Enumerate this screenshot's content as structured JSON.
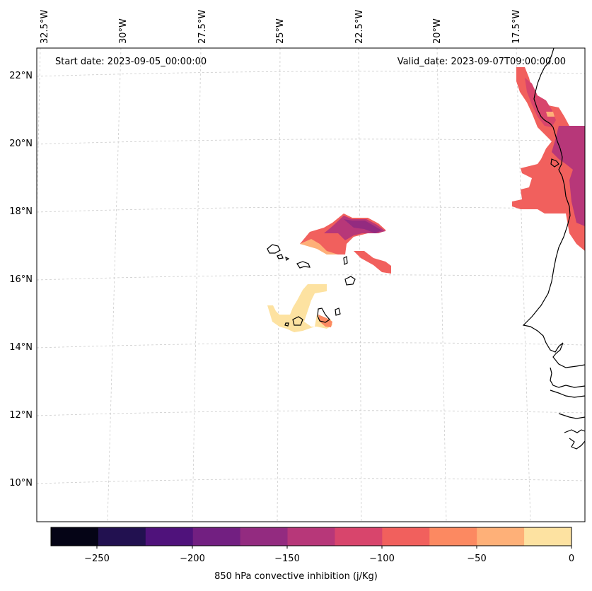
{
  "annotations": {
    "start_date": "Start date: 2023-09-05_00:00:00",
    "valid_date": "Valid_date: 2023-09-07T09:00:00.00"
  },
  "longitude_labels": [
    "32.5°W",
    "30°W",
    "27.5°W",
    "25°W",
    "22.5°W",
    "20°W",
    "17.5°W"
  ],
  "latitude_labels": [
    "22°N",
    "20°N",
    "18°N",
    "16°N",
    "14°N",
    "12°N",
    "10°N"
  ],
  "colorbar": {
    "label": "850 hPa convective inhibition (j/Kg)",
    "ticks": [
      "−250",
      "−200",
      "−150",
      "−100",
      "−50",
      "0"
    ],
    "colors": [
      "#050416",
      "#221150",
      "#4f127b",
      "#721f81",
      "#932b80",
      "#b73779",
      "#d8456c",
      "#f1605d",
      "#fc8961",
      "#feb078",
      "#fde2a1"
    ]
  },
  "field_colors": {
    "level_low": "#932b80",
    "level_mid": "#b73779",
    "level_red": "#d8456c",
    "level_orange": "#f1605d",
    "level_light_orange": "#fc8961",
    "level_peach": "#feb078",
    "level_cream": "#fde2a1"
  }
}
